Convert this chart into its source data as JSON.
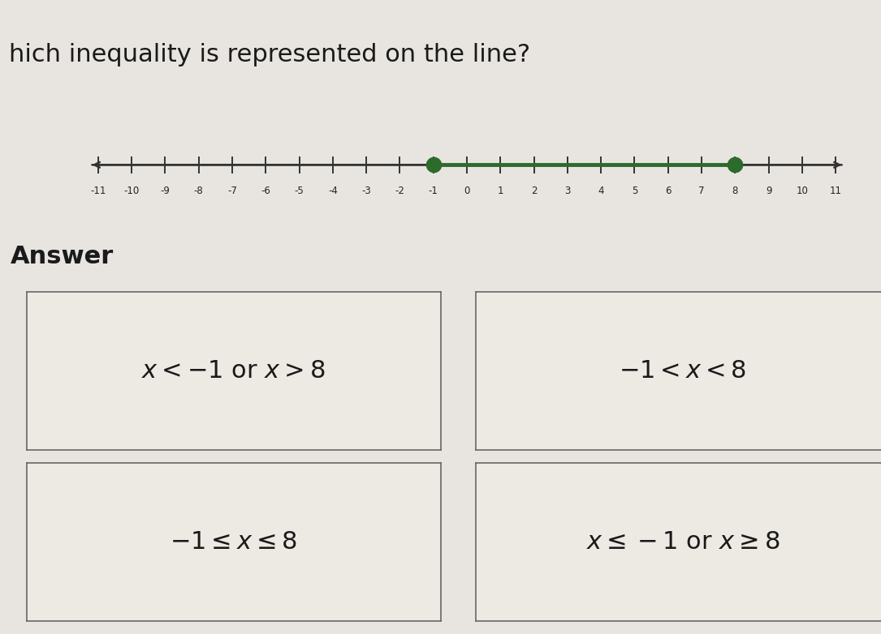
{
  "title": "hich inequality is represented on the line?",
  "background_color": "#e8e5e0",
  "number_line": {
    "x_min": -11,
    "x_max": 11,
    "dot1": -1,
    "dot2": 8,
    "line_color": "#2d6b2d",
    "axis_color": "#333333",
    "dot_color": "#2d6b2d",
    "tick_color": "#333333",
    "label_color": "#222222"
  },
  "answer_label": "Answer",
  "box_facecolor": "#edeae4",
  "box_edgecolor": "#666666",
  "option_fontsize": 22,
  "title_fontsize": 22,
  "answer_fontsize": 22
}
